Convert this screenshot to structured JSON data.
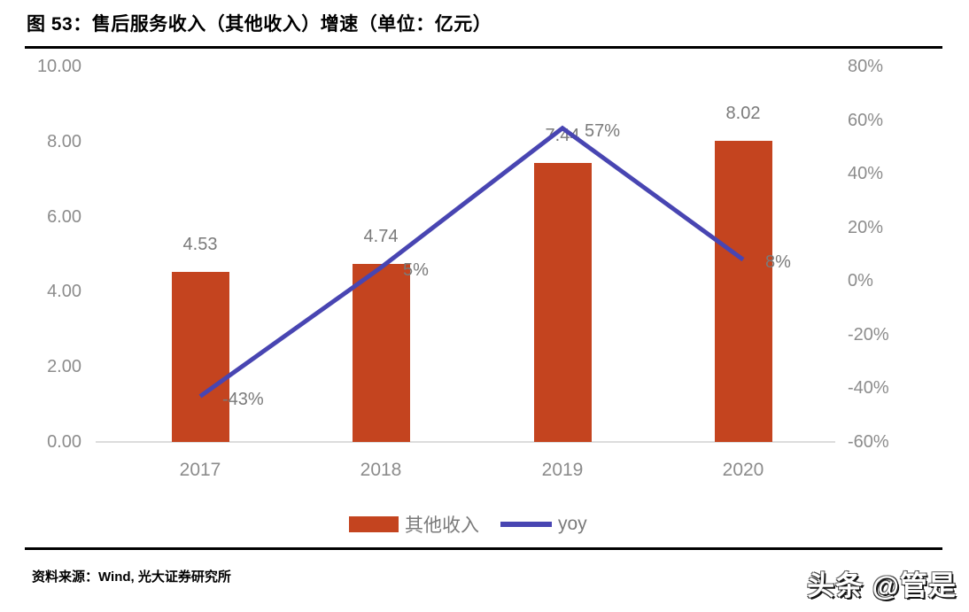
{
  "title": "图 53：售后服务收入（其他收入）增速（单位：亿元）",
  "source_note": "资料来源：Wind, 光大证券研究所",
  "watermark": "头条 @管是",
  "colors": {
    "bar": "#c4441f",
    "line": "#4845b2",
    "axis_text": "#8c8c8c",
    "data_label_text": "#7a7a7a",
    "baseline": "#dcdcdc",
    "title_text": "#000000"
  },
  "chart_data": {
    "type": "bar+line",
    "categories": [
      "2017",
      "2018",
      "2019",
      "2020"
    ],
    "series": [
      {
        "name": "其他收入",
        "type": "bar",
        "axis": "left",
        "values": [
          4.53,
          4.74,
          7.44,
          8.02
        ],
        "labels": [
          "4.53",
          "4.74",
          "7.44",
          "8.02"
        ]
      },
      {
        "name": "yoy",
        "type": "line",
        "axis": "right",
        "values": [
          -43,
          5,
          57,
          8
        ],
        "labels": [
          "-43%",
          "5%",
          "57%",
          "8%"
        ]
      }
    ],
    "left_axis": {
      "min": 0,
      "max": 10,
      "tick_values": [
        10,
        8,
        6,
        4,
        2,
        0
      ],
      "tick_labels": [
        "10.00",
        "8.00",
        "6.00",
        "4.00",
        "2.00",
        "0.00"
      ]
    },
    "right_axis": {
      "min": -60,
      "max": 80,
      "tick_values": [
        80,
        60,
        40,
        20,
        0,
        -20,
        -40,
        -60
      ],
      "tick_labels": [
        "80%",
        "60%",
        "40%",
        "20%",
        "0%",
        "-20%",
        "-40%",
        "-60%"
      ]
    },
    "grid": false,
    "legend_position": "bottom",
    "legend": [
      {
        "label": "其他收入",
        "swatch": "bar"
      },
      {
        "label": "yoy",
        "swatch": "line"
      }
    ]
  }
}
